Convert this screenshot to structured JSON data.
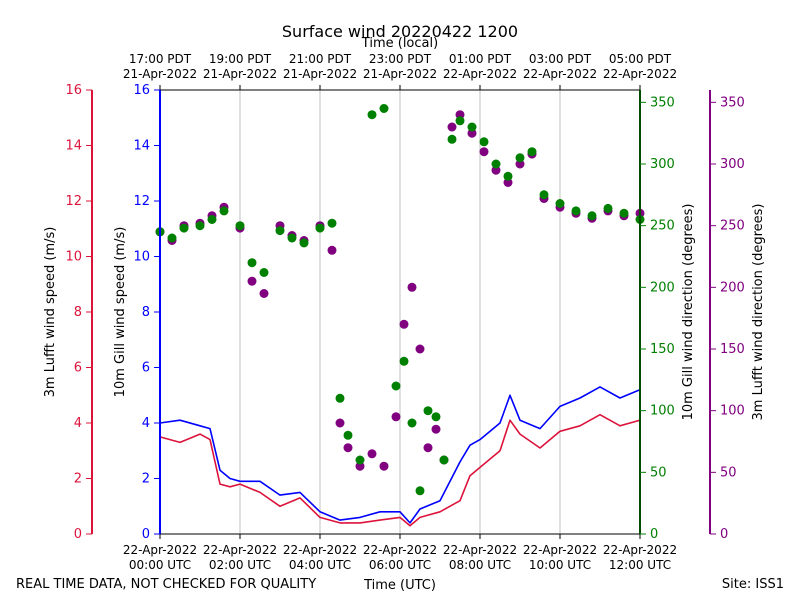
{
  "chart_data": {
    "type": "line+scatter",
    "title": "Surface wind 20220422 1200",
    "top_axis_title": "Time (local)",
    "xlabel": "Time (UTC)",
    "x_range_hours_utc": [
      0,
      12
    ],
    "x_ticks_utc": [
      {
        "hour": 0,
        "date": "22-Apr-2022",
        "time": "00:00 UTC"
      },
      {
        "hour": 2,
        "date": "22-Apr-2022",
        "time": "02:00 UTC"
      },
      {
        "hour": 4,
        "date": "22-Apr-2022",
        "time": "04:00 UTC"
      },
      {
        "hour": 6,
        "date": "22-Apr-2022",
        "time": "06:00 UTC"
      },
      {
        "hour": 8,
        "date": "22-Apr-2022",
        "time": "08:00 UTC"
      },
      {
        "hour": 10,
        "date": "22-Apr-2022",
        "time": "10:00 UTC"
      },
      {
        "hour": 12,
        "date": "22-Apr-2022",
        "time": "12:00 UTC"
      }
    ],
    "x_ticks_local": [
      {
        "hour": 0,
        "time": "17:00 PDT",
        "date": "21-Apr-2022"
      },
      {
        "hour": 2,
        "time": "19:00 PDT",
        "date": "21-Apr-2022"
      },
      {
        "hour": 4,
        "time": "21:00 PDT",
        "date": "21-Apr-2022"
      },
      {
        "hour": 6,
        "time": "23:00 PDT",
        "date": "21-Apr-2022"
      },
      {
        "hour": 8,
        "time": "01:00 PDT",
        "date": "22-Apr-2022"
      },
      {
        "hour": 10,
        "time": "03:00 PDT",
        "date": "22-Apr-2022"
      },
      {
        "hour": 12,
        "time": "05:00 PDT",
        "date": "22-Apr-2022"
      }
    ],
    "axes": {
      "lufft_speed": {
        "label": "3m Lufft wind speed (m/s)",
        "color": "#dc143c",
        "ylim": [
          0,
          16
        ],
        "ticks": [
          0,
          2,
          4,
          6,
          8,
          10,
          12,
          14,
          16
        ]
      },
      "gill_speed": {
        "label": "10m Gill wind speed (m/s)",
        "color": "#0000ff",
        "ylim": [
          0,
          16
        ],
        "ticks": [
          0,
          2,
          4,
          6,
          8,
          10,
          12,
          14,
          16
        ]
      },
      "gill_dir": {
        "label": "10m Gill wind direction (degrees)",
        "color": "#008000",
        "ylim": [
          0,
          360
        ],
        "ticks": [
          0,
          50,
          100,
          150,
          200,
          250,
          300,
          350
        ]
      },
      "lufft_dir": {
        "label": "3m Lufft wind direction (degrees)",
        "color": "#800080",
        "ylim": [
          0,
          360
        ],
        "ticks": [
          0,
          50,
          100,
          150,
          200,
          250,
          300,
          350
        ]
      }
    },
    "series": [
      {
        "name": "10m Gill wind speed",
        "kind": "line",
        "axis": "gill_speed",
        "color": "#0000ff",
        "x": [
          0,
          0.5,
          1,
          1.25,
          1.5,
          1.75,
          2,
          2.5,
          3,
          3.5,
          4,
          4.5,
          5,
          5.5,
          6,
          6.25,
          6.5,
          7,
          7.5,
          7.75,
          8,
          8.5,
          8.75,
          9,
          9.5,
          10,
          10.5,
          11,
          11.5,
          12
        ],
        "y": [
          4.0,
          4.1,
          3.9,
          3.8,
          2.3,
          2.0,
          1.9,
          1.9,
          1.4,
          1.5,
          0.8,
          0.5,
          0.6,
          0.8,
          0.8,
          0.4,
          0.9,
          1.2,
          2.6,
          3.2,
          3.4,
          4.0,
          5.0,
          4.1,
          3.8,
          4.6,
          4.9,
          5.3,
          4.9,
          5.2
        ]
      },
      {
        "name": "3m Lufft wind speed",
        "kind": "line",
        "axis": "lufft_speed",
        "color": "#dc143c",
        "x": [
          0,
          0.5,
          1,
          1.25,
          1.5,
          1.75,
          2,
          2.5,
          3,
          3.5,
          4,
          4.5,
          5,
          5.5,
          6,
          6.25,
          6.5,
          7,
          7.5,
          7.75,
          8,
          8.5,
          8.75,
          9,
          9.5,
          10,
          10.5,
          11,
          11.5,
          12
        ],
        "y": [
          3.5,
          3.3,
          3.6,
          3.4,
          1.8,
          1.7,
          1.8,
          1.5,
          1.0,
          1.3,
          0.6,
          0.4,
          0.4,
          0.5,
          0.6,
          0.3,
          0.6,
          0.8,
          1.2,
          2.1,
          2.4,
          3.0,
          4.1,
          3.6,
          3.1,
          3.7,
          3.9,
          4.3,
          3.9,
          4.1
        ]
      },
      {
        "name": "10m Gill wind direction",
        "kind": "scatter",
        "axis": "gill_dir",
        "color": "#008000",
        "x": [
          0,
          0.3,
          0.6,
          1.0,
          1.3,
          1.6,
          2.0,
          2.3,
          2.6,
          3.0,
          3.3,
          3.6,
          4.0,
          4.3,
          4.5,
          4.7,
          5.0,
          5.3,
          5.6,
          5.9,
          6.1,
          6.3,
          6.5,
          6.7,
          6.9,
          7.1,
          7.3,
          7.5,
          7.8,
          8.1,
          8.4,
          8.7,
          9.0,
          9.3,
          9.6,
          10.0,
          10.4,
          10.8,
          11.2,
          11.6,
          12.0
        ],
        "y": [
          245,
          240,
          248,
          250,
          255,
          262,
          250,
          220,
          212,
          246,
          240,
          236,
          248,
          252,
          110,
          80,
          60,
          340,
          345,
          120,
          140,
          90,
          35,
          100,
          95,
          60,
          320,
          335,
          330,
          318,
          300,
          290,
          305,
          310,
          275,
          268,
          262,
          258,
          264,
          260,
          255
        ]
      },
      {
        "name": "3m Lufft wind direction",
        "kind": "scatter",
        "axis": "lufft_dir",
        "color": "#800080",
        "x": [
          0,
          0.3,
          0.6,
          1.0,
          1.3,
          1.6,
          2.0,
          2.3,
          2.6,
          3.0,
          3.3,
          3.6,
          4.0,
          4.3,
          4.5,
          4.7,
          5.0,
          5.3,
          5.6,
          5.9,
          6.1,
          6.3,
          6.5,
          6.7,
          6.9,
          7.1,
          7.3,
          7.5,
          7.8,
          8.1,
          8.4,
          8.7,
          9.0,
          9.3,
          9.6,
          10.0,
          10.4,
          10.8,
          11.2,
          11.6,
          12.0
        ],
        "y": [
          245,
          238,
          250,
          252,
          258,
          265,
          248,
          205,
          195,
          250,
          242,
          238,
          250,
          230,
          90,
          70,
          55,
          65,
          55,
          95,
          170,
          200,
          150,
          70,
          85,
          60,
          330,
          340,
          325,
          310,
          295,
          285,
          300,
          308,
          272,
          265,
          260,
          256,
          262,
          258,
          260
        ]
      }
    ]
  },
  "footer": {
    "left_note": "REAL TIME DATA, NOT CHECKED FOR QUALITY",
    "right_note": "Site: ISS1"
  }
}
